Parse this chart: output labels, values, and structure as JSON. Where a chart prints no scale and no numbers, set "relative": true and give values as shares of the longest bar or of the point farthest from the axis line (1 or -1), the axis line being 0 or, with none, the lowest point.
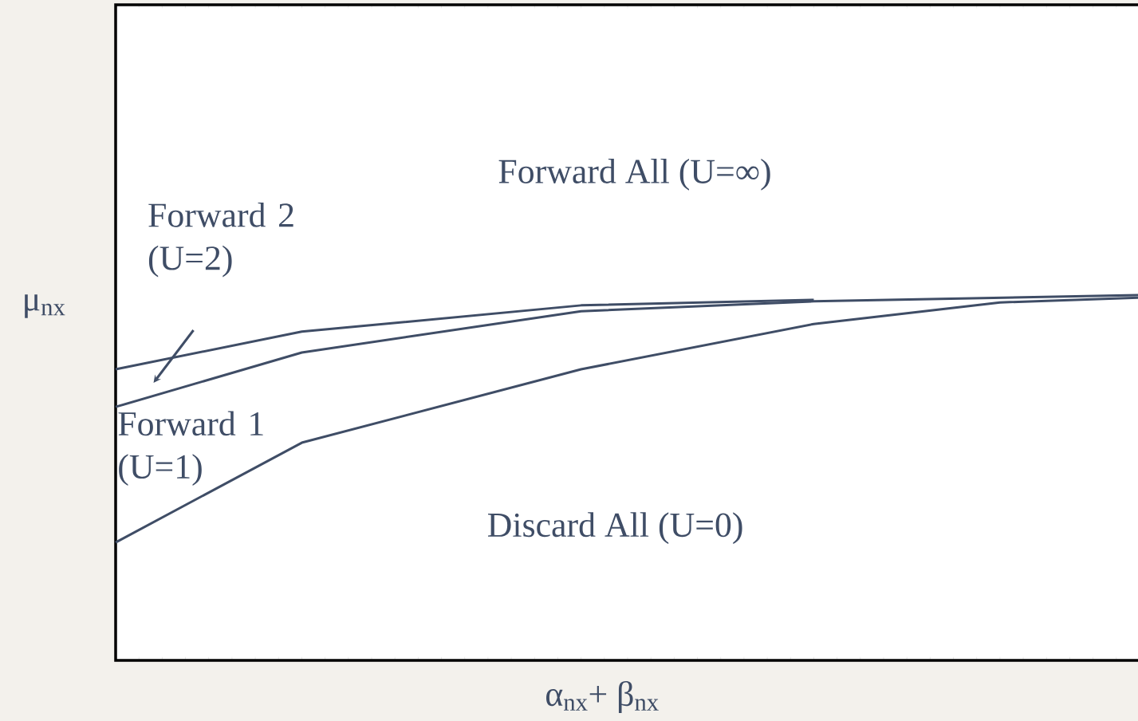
{
  "chart_data": {
    "type": "line",
    "relative": true,
    "xlabel": "α$_{nx}$+ β$_{nx}$",
    "ylabel": "μ$_{nx}$",
    "categories": [
      null,
      null,
      null,
      null,
      null,
      null,
      null,
      null,
      null,
      null,
      null,
      null,
      null,
      null,
      null,
      null,
      null,
      null,
      null,
      null,
      null,
      null,
      null
    ],
    "marker": "none",
    "line_style": "solid",
    "series": [
      {
        "color": "#3f4d66",
        "values": [
          0.797,
          null,
          null,
          null,
          0.9,
          null,
          null,
          null,
          null,
          null,
          0.972,
          null,
          null,
          null,
          null,
          0.987,
          null,
          null,
          null,
          null,
          null,
          null,
          null
        ]
      },
      {
        "color": "#3f4d66",
        "values": [
          0.694,
          null,
          null,
          null,
          0.843,
          null,
          null,
          null,
          null,
          null,
          0.956,
          null,
          null,
          null,
          null,
          0.983,
          null,
          null,
          null,
          null,
          null,
          null,
          1.0
        ]
      },
      {
        "color": "#3f4d66",
        "values": [
          0.323,
          null,
          null,
          null,
          0.596,
          null,
          null,
          null,
          null,
          null,
          0.797,
          null,
          null,
          null,
          null,
          0.921,
          null,
          null,
          null,
          0.98,
          null,
          null,
          0.993
        ]
      }
    ],
    "annotations": [
      "Forward All (U=∞)",
      "Forward 2 (U=2)",
      "Forward 1 (U=1)",
      "Discard All (U=0)"
    ]
  }
}
